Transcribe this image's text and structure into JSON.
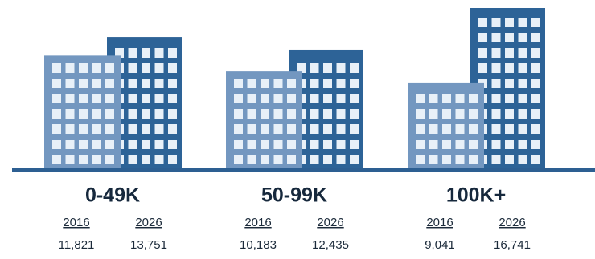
{
  "chart_data": {
    "type": "building",
    "categories": [
      "0-49K",
      "50-99K",
      "100K+"
    ],
    "series": [
      {
        "name": "2016",
        "color": "#7397c0",
        "values": [
          11821,
          10183,
          9041
        ],
        "value_labels": [
          "11,821",
          "10,183",
          "9,041"
        ]
      },
      {
        "name": "2026",
        "color": "#2d6397",
        "values": [
          13751,
          12435,
          16741
        ],
        "value_labels": [
          "13,751",
          "12,435",
          "16,741"
        ]
      }
    ],
    "baseline_color": "#2d5f92"
  }
}
